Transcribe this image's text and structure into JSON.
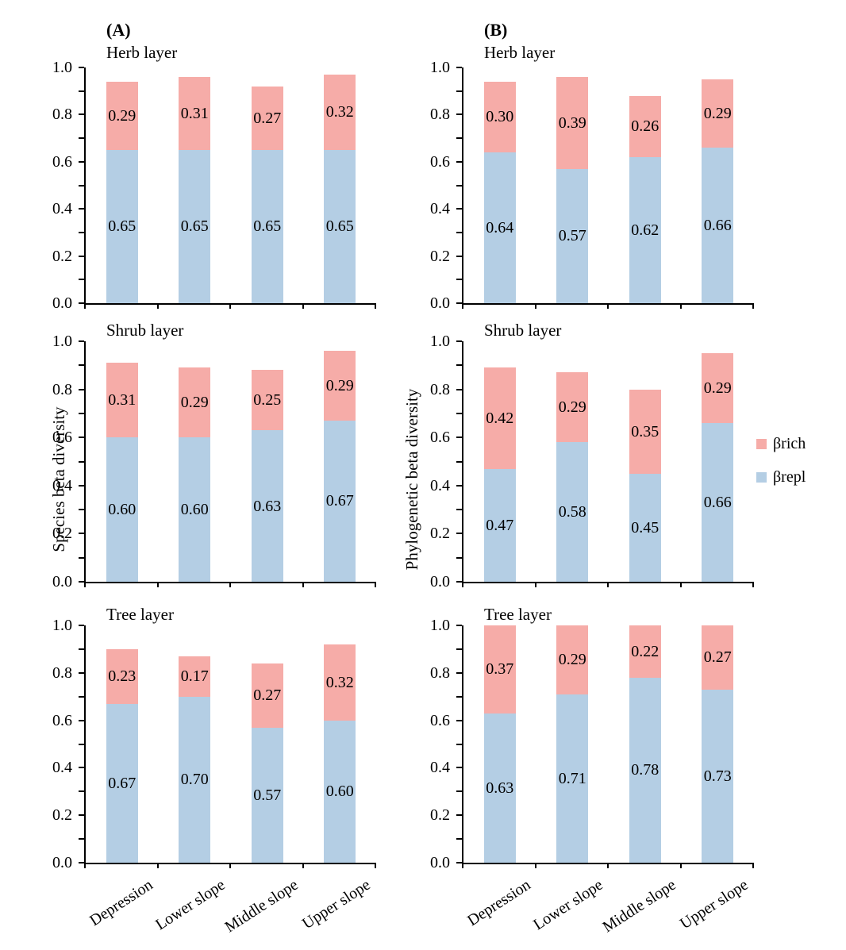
{
  "chart_data": {
    "type": "bar",
    "stacked": true,
    "categories": [
      "Depression",
      "Lower slope",
      "Middle slope",
      "Upper slope"
    ],
    "ylim": [
      0.0,
      1.0
    ],
    "ytick_labels": [
      "0.0",
      "0.2",
      "0.4",
      "0.6",
      "0.8",
      "1.0"
    ],
    "ymajor_step": 0.2,
    "yminor_step": 0.1,
    "grid": false,
    "legend": {
      "position": "right-middle",
      "entries": [
        {
          "name": "βrich",
          "color": "#F6ACA8"
        },
        {
          "name": "βrepl",
          "color": "#B4CEE4"
        }
      ]
    },
    "panels": [
      {
        "panel_label": "(A)",
        "ylabel": "Species beta diversity",
        "charts": [
          {
            "title": "Herb layer",
            "series": [
              {
                "name": "βrepl",
                "values": [
                  0.65,
                  0.65,
                  0.65,
                  0.65
                ]
              },
              {
                "name": "βrich",
                "values": [
                  0.29,
                  0.31,
                  0.27,
                  0.32
                ]
              }
            ]
          },
          {
            "title": "Shrub layer",
            "series": [
              {
                "name": "βrepl",
                "values": [
                  0.6,
                  0.6,
                  0.63,
                  0.67
                ]
              },
              {
                "name": "βrich",
                "values": [
                  0.31,
                  0.29,
                  0.25,
                  0.29
                ]
              }
            ]
          },
          {
            "title": "Tree layer",
            "series": [
              {
                "name": "βrepl",
                "values": [
                  0.67,
                  0.7,
                  0.57,
                  0.6
                ]
              },
              {
                "name": "βrich",
                "values": [
                  0.23,
                  0.17,
                  0.27,
                  0.32
                ]
              }
            ]
          }
        ]
      },
      {
        "panel_label": "(B)",
        "ylabel": "Phylogenetic beta diversity",
        "charts": [
          {
            "title": "Herb layer",
            "series": [
              {
                "name": "βrepl",
                "values": [
                  0.64,
                  0.57,
                  0.62,
                  0.66
                ]
              },
              {
                "name": "βrich",
                "values": [
                  0.3,
                  0.39,
                  0.26,
                  0.29
                ]
              }
            ]
          },
          {
            "title": "Shrub layer",
            "series": [
              {
                "name": "βrepl",
                "values": [
                  0.47,
                  0.58,
                  0.45,
                  0.66
                ]
              },
              {
                "name": "βrich",
                "values": [
                  0.42,
                  0.29,
                  0.35,
                  0.29
                ]
              }
            ]
          },
          {
            "title": "Tree layer",
            "series": [
              {
                "name": "βrepl",
                "values": [
                  0.63,
                  0.71,
                  0.78,
                  0.73
                ]
              },
              {
                "name": "βrich",
                "values": [
                  0.37,
                  0.29,
                  0.22,
                  0.27
                ]
              }
            ]
          }
        ]
      }
    ]
  }
}
